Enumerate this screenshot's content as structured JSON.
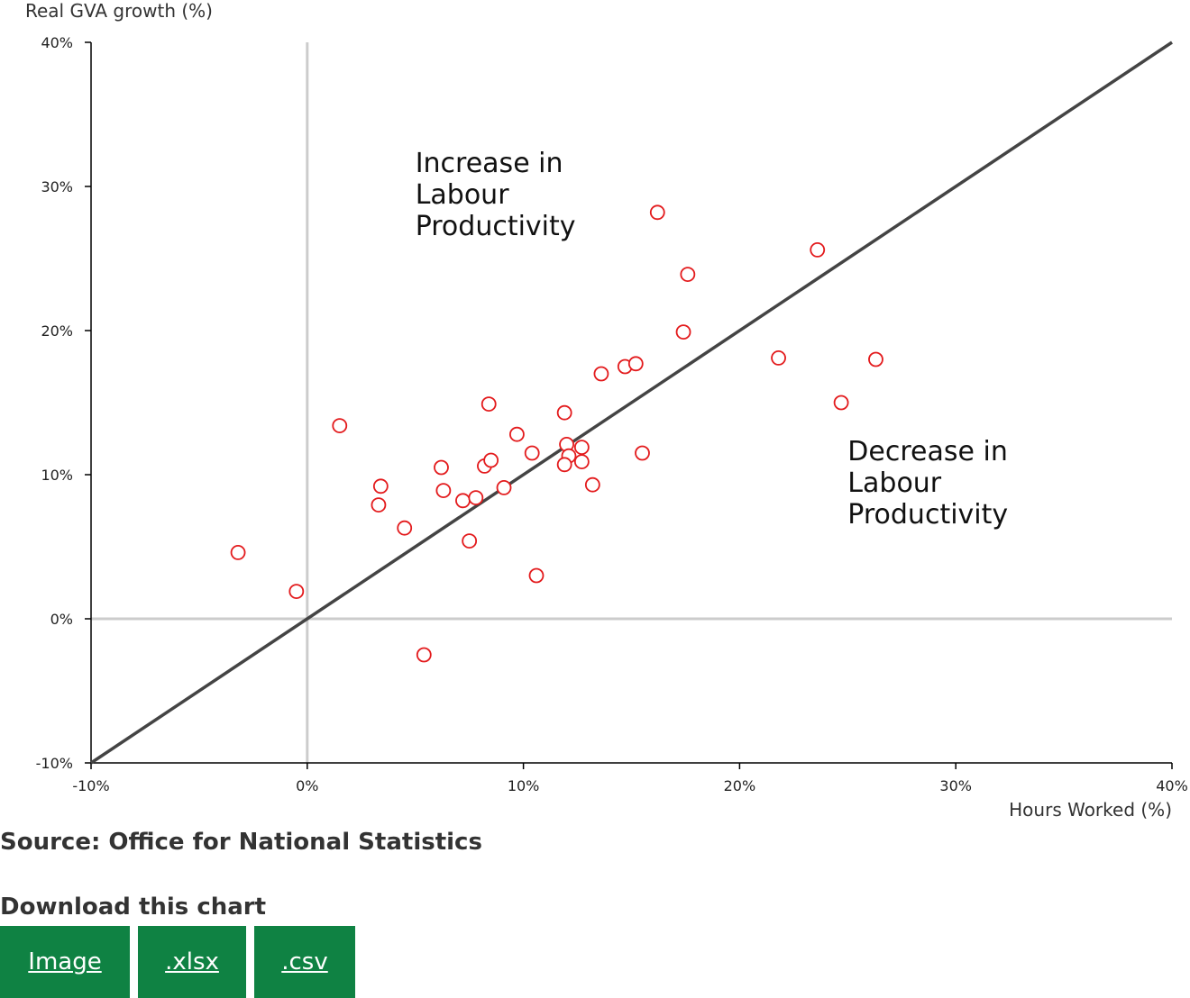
{
  "chart_data": {
    "type": "scatter",
    "xlabel": "Hours Worked (%)",
    "ylabel": "Real GVA growth (%)",
    "xlim": [
      -10,
      40
    ],
    "ylim": [
      -10,
      40
    ],
    "x_ticks": [
      "-10%",
      "0%",
      "10%",
      "20%",
      "30%",
      "40%"
    ],
    "y_ticks": [
      "-10%",
      "0%",
      "10%",
      "20%",
      "30%",
      "40%"
    ],
    "reference_line": "y = x",
    "annotations": [
      {
        "text": [
          "Increase in",
          "Labour",
          "Productivity"
        ],
        "x": 5,
        "y": 31
      },
      {
        "text": [
          "Decrease in",
          "Labour",
          "Productivity"
        ],
        "x": 25,
        "y": 11
      }
    ],
    "marker_color": "#e31a1c",
    "line_color": "#444444",
    "zero_line_color": "#cccccc",
    "points": [
      {
        "x": -3.2,
        "y": 4.6
      },
      {
        "x": -0.5,
        "y": 1.9
      },
      {
        "x": 1.5,
        "y": 13.4
      },
      {
        "x": 3.4,
        "y": 9.2
      },
      {
        "x": 3.3,
        "y": 7.9
      },
      {
        "x": 4.5,
        "y": 6.3
      },
      {
        "x": 5.4,
        "y": -2.5
      },
      {
        "x": 6.2,
        "y": 10.5
      },
      {
        "x": 6.3,
        "y": 8.9
      },
      {
        "x": 7.2,
        "y": 8.2
      },
      {
        "x": 7.8,
        "y": 8.4
      },
      {
        "x": 7.5,
        "y": 5.4
      },
      {
        "x": 8.2,
        "y": 10.6
      },
      {
        "x": 8.5,
        "y": 11.0
      },
      {
        "x": 8.4,
        "y": 14.9
      },
      {
        "x": 9.1,
        "y": 9.1
      },
      {
        "x": 9.7,
        "y": 12.8
      },
      {
        "x": 10.4,
        "y": 11.5
      },
      {
        "x": 10.6,
        "y": 3.0
      },
      {
        "x": 11.9,
        "y": 14.3
      },
      {
        "x": 12.0,
        "y": 12.1
      },
      {
        "x": 12.1,
        "y": 11.3
      },
      {
        "x": 11.9,
        "y": 10.7
      },
      {
        "x": 12.7,
        "y": 11.9
      },
      {
        "x": 12.7,
        "y": 10.9
      },
      {
        "x": 13.2,
        "y": 9.3
      },
      {
        "x": 13.6,
        "y": 17.0
      },
      {
        "x": 14.7,
        "y": 17.5
      },
      {
        "x": 15.2,
        "y": 17.7
      },
      {
        "x": 15.5,
        "y": 11.5
      },
      {
        "x": 16.2,
        "y": 28.2
      },
      {
        "x": 17.4,
        "y": 19.9
      },
      {
        "x": 17.6,
        "y": 23.9
      },
      {
        "x": 21.8,
        "y": 18.1
      },
      {
        "x": 23.6,
        "y": 25.6
      },
      {
        "x": 24.7,
        "y": 15.0
      },
      {
        "x": 26.3,
        "y": 18.0
      }
    ]
  },
  "source_text": "Source: Office for National Statistics",
  "download": {
    "title": "Download this chart",
    "buttons": [
      ".xlsx",
      ".csv"
    ],
    "image_label": "Image",
    "xlsx_label": ".xlsx",
    "csv_label": ".csv",
    "button_color": "#0f8243"
  }
}
